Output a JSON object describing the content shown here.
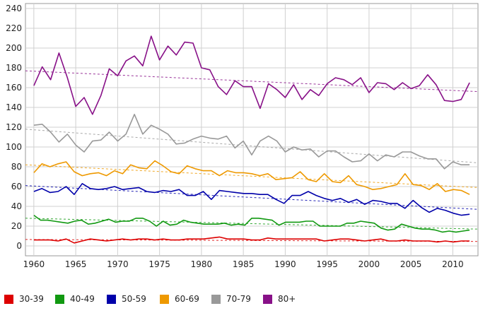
{
  "chart_data": {
    "type": "line",
    "title": "",
    "xlabel": "",
    "ylabel": "",
    "xlim": [
      1959,
      2013
    ],
    "ylim": [
      -10,
      245
    ],
    "x_ticks": [
      1960,
      1965,
      1970,
      1975,
      1980,
      1985,
      1990,
      1995,
      2000,
      2005,
      2010
    ],
    "y_ticks": [
      0,
      20,
      40,
      60,
      80,
      100,
      120,
      140,
      160,
      180,
      200,
      220,
      240
    ],
    "grid": true,
    "legend_position": "bottom",
    "x_start": 1960,
    "series": [
      {
        "name": "30-39",
        "color": "#dd0000",
        "trend": [
          6.5,
          4.5
        ],
        "values": [
          6,
          6,
          6,
          5,
          7,
          3,
          5,
          7,
          6,
          5,
          6,
          7,
          6,
          7,
          7,
          6,
          7,
          6,
          6,
          7,
          7,
          7,
          8,
          9,
          7,
          7,
          7,
          6,
          6,
          8,
          7,
          7,
          7,
          7,
          7,
          7,
          5,
          6,
          7,
          7,
          6,
          5,
          6,
          7,
          5,
          5,
          6,
          5,
          5,
          5,
          4,
          5,
          4,
          5,
          5
        ]
      },
      {
        "name": "40-49",
        "color": "#119911",
        "trend": [
          28,
          17
        ],
        "values": [
          31,
          26,
          26,
          25,
          24,
          23,
          25,
          26,
          22,
          23,
          25,
          27,
          24,
          25,
          25,
          28,
          28,
          25,
          20,
          25,
          21,
          22,
          26,
          24,
          23,
          22,
          22,
          22,
          23,
          21,
          22,
          21,
          28,
          28,
          27,
          26,
          21,
          24,
          24,
          24,
          25,
          25,
          20,
          20,
          20,
          20,
          23,
          23,
          25,
          24,
          23,
          18,
          16,
          17,
          22,
          20,
          18,
          17,
          17,
          16,
          14,
          15,
          14,
          15,
          16
        ]
      },
      {
        "name": "50-59",
        "color": "#0000aa",
        "trend": [
          61,
          37
        ],
        "values": [
          55,
          58,
          54,
          55,
          60,
          52,
          63,
          58,
          57,
          58,
          60,
          57,
          58,
          59,
          55,
          54,
          56,
          55,
          57,
          51,
          51,
          55,
          47,
          56,
          55,
          54,
          53,
          53,
          52,
          52,
          47,
          43,
          51,
          51,
          55,
          51,
          48,
          46,
          48,
          44,
          47,
          42,
          46,
          45,
          43,
          43,
          38,
          46,
          39,
          34,
          38,
          36,
          33,
          31,
          32
        ]
      },
      {
        "name": "60-69",
        "color": "#ee9900",
        "trend": [
          82,
          59
        ],
        "values": [
          74,
          83,
          80,
          83,
          85,
          75,
          71,
          73,
          74,
          71,
          76,
          73,
          82,
          79,
          78,
          86,
          81,
          75,
          73,
          81,
          78,
          76,
          76,
          71,
          76,
          74,
          74,
          73,
          71,
          73,
          67,
          68,
          69,
          75,
          67,
          65,
          73,
          65,
          64,
          71,
          62,
          60,
          57,
          58,
          60,
          62,
          73,
          62,
          61,
          57,
          63,
          55,
          57,
          56,
          52
        ]
      },
      {
        "name": "70-79",
        "color": "#999999",
        "trend": [
          118,
          84
        ],
        "values": [
          122,
          123,
          115,
          105,
          113,
          102,
          95,
          106,
          107,
          115,
          106,
          113,
          133,
          113,
          122,
          118,
          113,
          103,
          104,
          108,
          111,
          109,
          108,
          111,
          99,
          106,
          92,
          106,
          111,
          106,
          95,
          100,
          97,
          98,
          90,
          96,
          96,
          90,
          85,
          86,
          93,
          86,
          92,
          90,
          95,
          95,
          91,
          88,
          88,
          78,
          85,
          82,
          82
        ]
      },
      {
        "name": "80+",
        "color": "#881188",
        "trend": [
          177,
          156
        ],
        "values": [
          162,
          181,
          168,
          195,
          170,
          141,
          150,
          133,
          152,
          179,
          172,
          187,
          192,
          182,
          212,
          188,
          202,
          193,
          206,
          205,
          180,
          178,
          161,
          153,
          167,
          161,
          161,
          139,
          164,
          158,
          150,
          163,
          148,
          158,
          152,
          164,
          170,
          168,
          163,
          170,
          155,
          165,
          164,
          158,
          165,
          159,
          162,
          173,
          163,
          147,
          146,
          148,
          165
        ]
      }
    ]
  }
}
